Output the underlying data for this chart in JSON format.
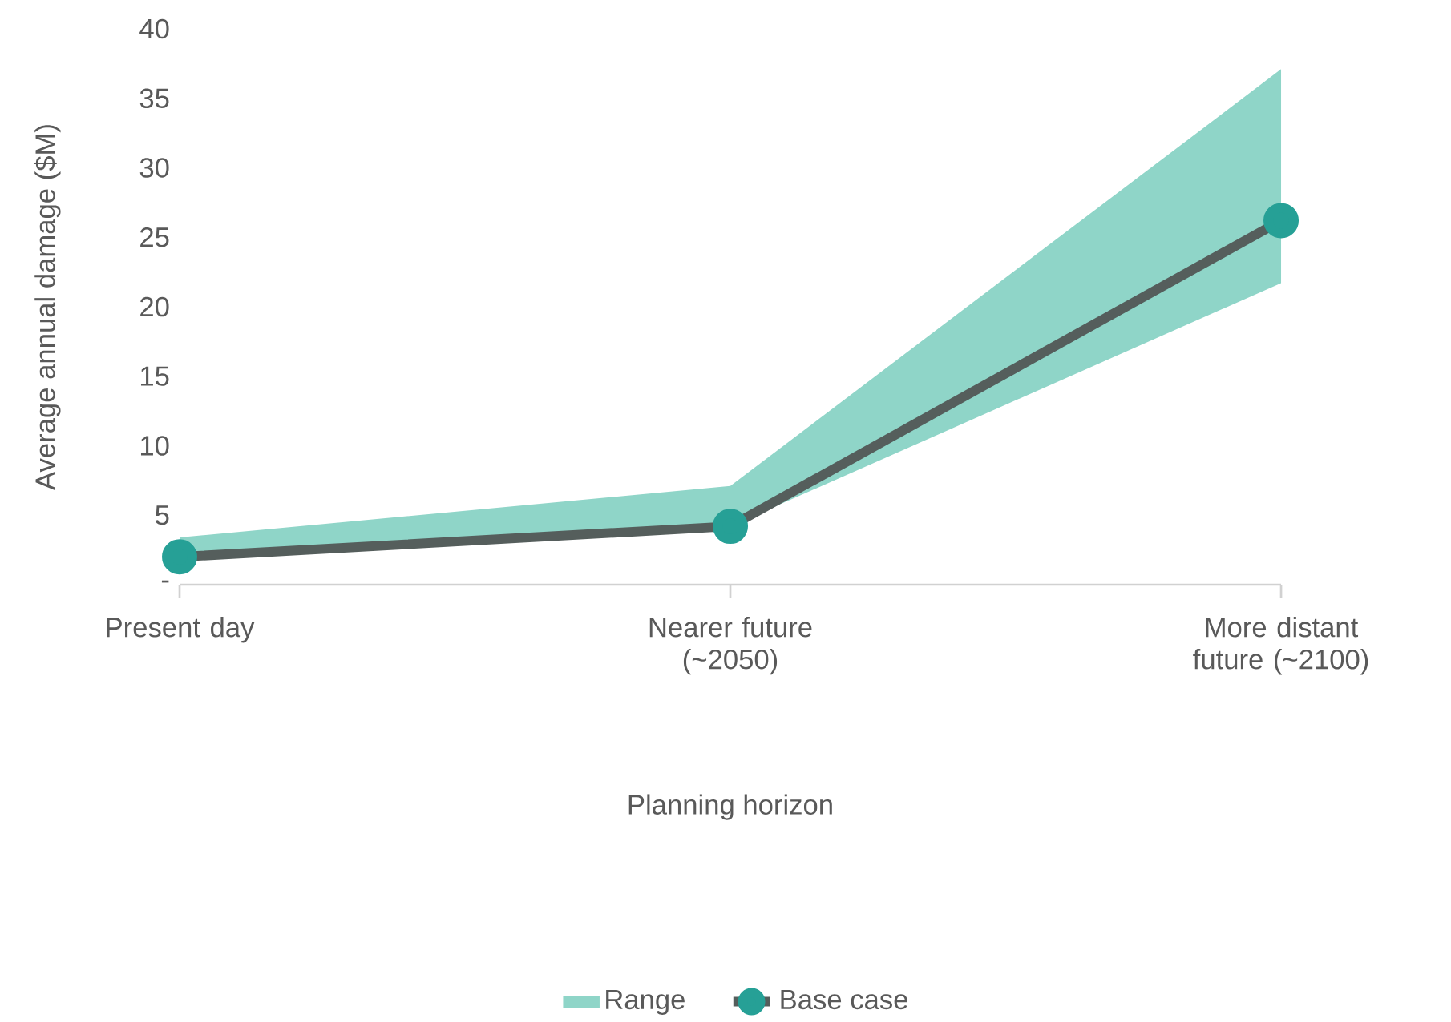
{
  "chart_data": {
    "type": "line",
    "xlabel": "Planning horizon",
    "ylabel": "Average annual damage ($M)",
    "categories": [
      "Present day",
      "Nearer future (~2050)",
      "More distant future (~2100)"
    ],
    "ylim": [
      0,
      40
    ],
    "yticks": [
      {
        "value": 0,
        "label": "-"
      },
      5,
      10,
      15,
      20,
      25,
      30,
      35,
      40
    ],
    "legend": "bottom",
    "annotations": [
      "Range"
    ],
    "series": [
      {
        "name": "Base case",
        "type": "line",
        "color": "#555e5c",
        "marker": "circle",
        "values": [
          2.0,
          4.2,
          26.2
        ],
        "lower": [
          2.0,
          4.2,
          21.7
        ],
        "upper": [
          3.4,
          7.1,
          37.1
        ]
      }
    ]
  }
}
